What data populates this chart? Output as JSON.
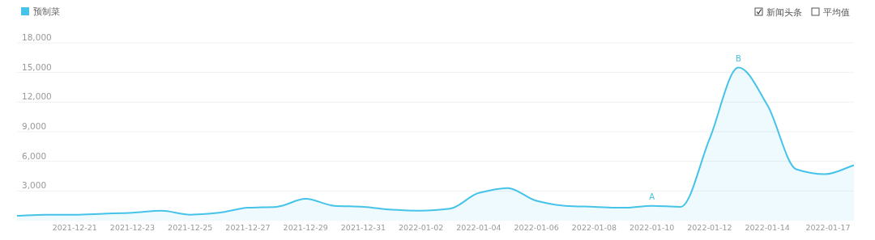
{
  "chart_data": {
    "type": "area",
    "x": [
      "2021-12-19",
      "2021-12-20",
      "2021-12-21",
      "2021-12-22",
      "2021-12-23",
      "2021-12-24",
      "2021-12-25",
      "2021-12-26",
      "2021-12-27",
      "2021-12-28",
      "2021-12-29",
      "2021-12-30",
      "2021-12-31",
      "2022-01-01",
      "2022-01-02",
      "2022-01-03",
      "2022-01-04",
      "2022-01-05",
      "2022-01-06",
      "2022-01-07",
      "2022-01-08",
      "2022-01-09",
      "2022-01-10",
      "2022-01-11",
      "2022-01-12",
      "2022-01-13",
      "2022-01-14",
      "2022-01-15",
      "2022-01-16",
      "2022-01-17"
    ],
    "series": [
      {
        "name": "预制菜",
        "color": "#45c3e8",
        "values": [
          500,
          600,
          600,
          700,
          800,
          1000,
          600,
          800,
          1300,
          1400,
          2200,
          1500,
          1400,
          1100,
          1000,
          1200,
          2800,
          3300,
          2000,
          1500,
          1400,
          1300,
          1500,
          1400,
          8300,
          15500,
          11700,
          5200,
          4700,
          5600
        ]
      }
    ],
    "xlim": [
      "2021-12-19",
      "2022-01-17"
    ],
    "xticks": [
      "2021-12-21",
      "2021-12-23",
      "2021-12-25",
      "2021-12-27",
      "2021-12-29",
      "2021-12-31",
      "2022-01-02",
      "2022-01-04",
      "2022-01-06",
      "2022-01-08",
      "2022-01-10",
      "2022-01-12",
      "2022-01-14",
      "2022-01-17"
    ],
    "ylim": [
      0,
      18000
    ],
    "yticks": [
      {
        "value": 3000,
        "label": "3,000"
      },
      {
        "value": 6000,
        "label": "6,000"
      },
      {
        "value": 9000,
        "label": "9,000"
      },
      {
        "value": 12000,
        "label": "12,000"
      },
      {
        "value": 15000,
        "label": "15,000"
      },
      {
        "value": 18000,
        "label": "18,000"
      }
    ],
    "grid": "y",
    "legend": "top left",
    "annotations": [
      {
        "text": "A",
        "x": "2022-01-10",
        "y": 1500
      },
      {
        "text": "B",
        "x": "2022-01-13",
        "y": 15500
      },
      "新闻头条",
      "平均值"
    ]
  }
}
